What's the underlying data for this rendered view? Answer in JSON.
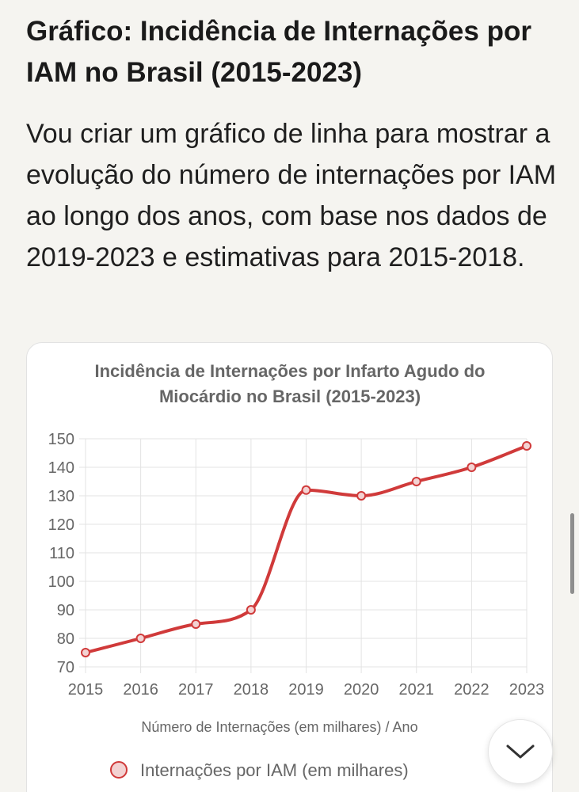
{
  "page": {
    "heading": "Gráfico: Incidência de Internações por IAM no Brasil (2015-2023)",
    "intro": "Vou criar um gráfico de linha para mostrar a evolução do número de internações por IAM ao longo dos anos, com base nos dados de 2019-2023 e estimativas para 2015-2018."
  },
  "chart_data": {
    "type": "line",
    "title_lines": [
      "Incidência de Internações por Infarto Agudo do",
      "Miocárdio no Brasil (2015-2023)"
    ],
    "xlabel": "Número de Internações (em milhares) / Ano",
    "ylabel": "",
    "categories": [
      "2015",
      "2016",
      "2017",
      "2018",
      "2019",
      "2020",
      "2021",
      "2022",
      "2023"
    ],
    "series": [
      {
        "name": "Internações por IAM (em milhares)",
        "values": [
          75,
          80,
          85,
          90,
          132,
          130,
          135,
          140,
          147.5
        ],
        "color": "#d03a3a",
        "point_fill": "#f3d2d2"
      }
    ],
    "ylim": [
      70,
      150
    ],
    "yticks": [
      70,
      80,
      90,
      100,
      110,
      120,
      130,
      140,
      150
    ],
    "grid": true,
    "smooth": true,
    "legend_position": "bottom"
  },
  "ui": {
    "scroll_icon": "chevron-down-icon"
  }
}
